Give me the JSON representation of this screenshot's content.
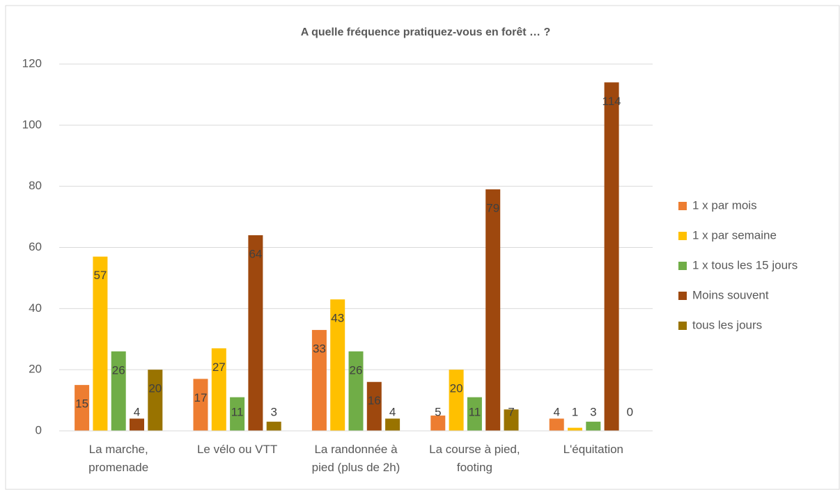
{
  "chart_data": {
    "type": "bar",
    "title": "A quelle fréquence pratiquez-vous en forêt … ?",
    "categories": [
      "La marche,\npromenade",
      "Le vélo ou VTT",
      "La randonnée à\npied (plus de 2h)",
      "La course à pied,\nfooting",
      "L'équitation"
    ],
    "series": [
      {
        "name": "1 x par mois",
        "color": "#ED7D31",
        "values": [
          15,
          17,
          33,
          5,
          4
        ]
      },
      {
        "name": "1 x par semaine",
        "color": "#FFC000",
        "values": [
          57,
          27,
          43,
          20,
          1
        ]
      },
      {
        "name": "1 x tous les 15 jours",
        "color": "#70AD47",
        "values": [
          26,
          11,
          26,
          11,
          3
        ]
      },
      {
        "name": "Moins souvent",
        "color": "#9E480E",
        "values": [
          4,
          64,
          16,
          79,
          114
        ]
      },
      {
        "name": "tous les jours",
        "color": "#997300",
        "values": [
          20,
          3,
          4,
          7,
          0
        ]
      }
    ],
    "ylim": [
      0,
      120
    ],
    "yticks": [
      0,
      20,
      40,
      60,
      80,
      100,
      120
    ],
    "grid": true,
    "legend": "right"
  }
}
